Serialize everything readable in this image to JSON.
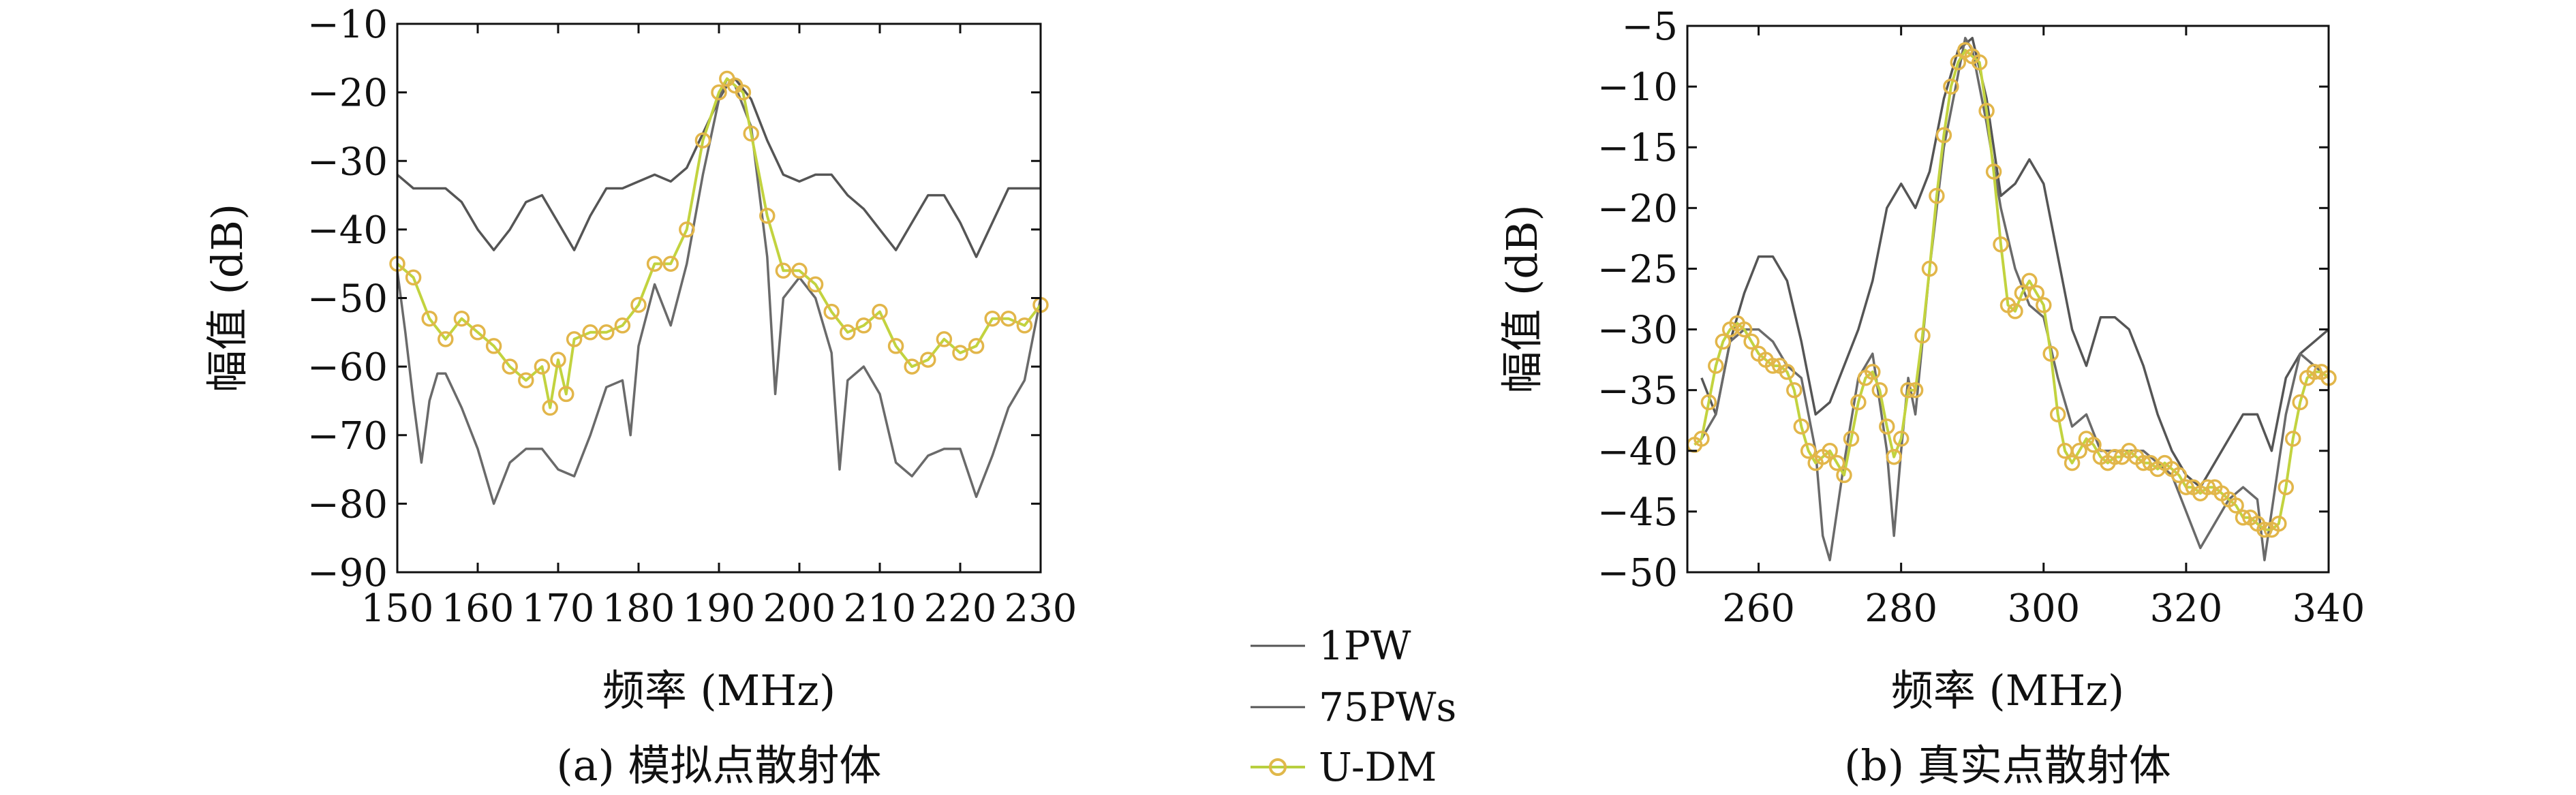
{
  "legend": {
    "entries": [
      {
        "name": "1PW",
        "color": "#555555"
      },
      {
        "name": "75PWs",
        "color": "#555555"
      },
      {
        "name": "U-DM",
        "color": "#b8cf3f",
        "marker": "#e0b84a"
      }
    ]
  },
  "colors": {
    "line_1pw": "#555555",
    "line_75pws": "#6a6a6a",
    "line_udm": "#c2d33f",
    "marker_udm": "#e2b64a",
    "accent_blue": "#2f8fcf",
    "accent_red": "#d5582a"
  },
  "chart_data": [
    {
      "type": "line",
      "caption": "(a) 模拟点散射体",
      "xlabel": "频率 (MHz)",
      "ylabel": "幅值 (dB)",
      "xlim": [
        150,
        230
      ],
      "ylim": [
        -90,
        -10
      ],
      "xticks": [
        150,
        160,
        170,
        180,
        190,
        200,
        210,
        220,
        230
      ],
      "yticks": [
        -10,
        -20,
        -30,
        -40,
        -50,
        -60,
        -70,
        -80,
        -90
      ],
      "grid": false,
      "series": [
        {
          "name": "1PW",
          "x": [
            150,
            152,
            154,
            156,
            158,
            160,
            162,
            164,
            166,
            168,
            170,
            172,
            174,
            176,
            178,
            180,
            182,
            184,
            186,
            188,
            190,
            191,
            192,
            194,
            196,
            198,
            200,
            202,
            204,
            206,
            208,
            210,
            212,
            214,
            216,
            218,
            220,
            222,
            224,
            226,
            228,
            230
          ],
          "y": [
            -32,
            -34,
            -34,
            -34,
            -36,
            -40,
            -43,
            -40,
            -36,
            -35,
            -39,
            -43,
            -38,
            -34,
            -34,
            -33,
            -32,
            -33,
            -31,
            -26,
            -21,
            -19,
            -18,
            -21,
            -27,
            -32,
            -33,
            -32,
            -32,
            -35,
            -37,
            -40,
            -43,
            -39,
            -35,
            -35,
            -39,
            -44,
            -39,
            -34,
            -34,
            -34
          ]
        },
        {
          "name": "75PWs",
          "x": [
            150,
            151,
            152,
            153,
            154,
            155,
            156,
            158,
            160,
            162,
            164,
            166,
            168,
            170,
            172,
            174,
            176,
            178,
            179,
            180,
            182,
            184,
            186,
            188,
            190,
            191,
            192,
            194,
            196,
            197,
            198,
            200,
            202,
            204,
            205,
            206,
            208,
            210,
            212,
            214,
            216,
            218,
            220,
            222,
            224,
            226,
            228,
            230
          ],
          "y": [
            -46,
            -55,
            -65,
            -74,
            -65,
            -61,
            -61,
            -66,
            -72,
            -80,
            -74,
            -72,
            -72,
            -75,
            -76,
            -70,
            -63,
            -62,
            -70,
            -57,
            -48,
            -54,
            -45,
            -32,
            -21,
            -18,
            -19,
            -25,
            -44,
            -64,
            -50,
            -47,
            -50,
            -58,
            -75,
            -62,
            -60,
            -64,
            -74,
            -76,
            -73,
            -72,
            -72,
            -79,
            -73,
            -66,
            -62,
            -50
          ]
        },
        {
          "name": "U-DM",
          "x": [
            150,
            152,
            154,
            156,
            158,
            160,
            162,
            164,
            166,
            168,
            169,
            170,
            171,
            172,
            174,
            176,
            178,
            180,
            182,
            184,
            186,
            188,
            190,
            191,
            192,
            193,
            194,
            196,
            198,
            200,
            202,
            204,
            206,
            208,
            210,
            212,
            214,
            216,
            218,
            220,
            222,
            224,
            226,
            228,
            230
          ],
          "y": [
            -45,
            -47,
            -53,
            -56,
            -53,
            -55,
            -57,
            -60,
            -62,
            -60,
            -66,
            -59,
            -64,
            -56,
            -55,
            -55,
            -54,
            -51,
            -45,
            -45,
            -40,
            -27,
            -20,
            -18,
            -19,
            -20,
            -26,
            -38,
            -46,
            -46,
            -48,
            -52,
            -55,
            -54,
            -52,
            -57,
            -60,
            -59,
            -56,
            -58,
            -57,
            -53,
            -53,
            -54,
            -51
          ]
        }
      ]
    },
    {
      "type": "line",
      "caption": "(b) 真实点散射体",
      "xlabel": "频率 (MHz)",
      "ylabel": "幅值 (dB)",
      "xlim": [
        250,
        340
      ],
      "ylim": [
        -50,
        -5
      ],
      "xticks": [
        260,
        280,
        300,
        320,
        340
      ],
      "yticks": [
        -5,
        -10,
        -15,
        -20,
        -25,
        -30,
        -35,
        -40,
        -45,
        -50
      ],
      "grid": false,
      "series": [
        {
          "name": "1PW",
          "x": [
            252,
            254,
            256,
            258,
            260,
            262,
            264,
            266,
            268,
            270,
            272,
            274,
            276,
            278,
            280,
            282,
            284,
            286,
            288,
            290,
            292,
            294,
            296,
            298,
            300,
            302,
            304,
            306,
            308,
            310,
            312,
            314,
            316,
            318,
            320,
            322,
            324,
            326,
            328,
            330,
            332,
            334,
            336,
            338,
            340
          ],
          "y": [
            -34,
            -37,
            -31,
            -27,
            -24,
            -24,
            -26,
            -31,
            -37,
            -36,
            -33,
            -30,
            -26,
            -20,
            -18,
            -20,
            -17,
            -11,
            -7,
            -6,
            -11,
            -19,
            -18,
            -16,
            -18,
            -24,
            -30,
            -33,
            -29,
            -29,
            -30,
            -33,
            -37,
            -40,
            -42,
            -43,
            -41,
            -39,
            -37,
            -37,
            -40,
            -34,
            -32,
            -31,
            -30
          ]
        },
        {
          "name": "75PWs",
          "x": [
            252,
            254,
            256,
            258,
            260,
            262,
            264,
            266,
            268,
            269,
            270,
            272,
            274,
            276,
            278,
            279,
            280,
            281,
            282,
            284,
            286,
            288,
            289,
            290,
            292,
            294,
            296,
            298,
            300,
            302,
            304,
            306,
            308,
            310,
            312,
            314,
            316,
            318,
            320,
            322,
            324,
            326,
            328,
            330,
            331,
            332,
            334,
            336,
            338,
            340
          ],
          "y": [
            -39,
            -37,
            -31,
            -30,
            -30,
            -31,
            -33,
            -34,
            -40,
            -47,
            -49,
            -41,
            -34,
            -32,
            -40,
            -47,
            -40,
            -34,
            -37,
            -25,
            -15,
            -9,
            -6,
            -7,
            -13,
            -20,
            -25,
            -28,
            -29,
            -34,
            -38,
            -37,
            -40,
            -40,
            -40,
            -40,
            -41,
            -42,
            -45,
            -48,
            -46,
            -44,
            -43,
            -44,
            -49,
            -45,
            -37,
            -32,
            -33,
            -34
          ]
        },
        {
          "name": "U-DM",
          "x": [
            251,
            252,
            253,
            254,
            255,
            256,
            257,
            258,
            259,
            260,
            261,
            262,
            263,
            264,
            265,
            266,
            267,
            268,
            269,
            270,
            271,
            272,
            273,
            274,
            275,
            276,
            277,
            278,
            279,
            280,
            281,
            282,
            283,
            284,
            285,
            286,
            287,
            288,
            289,
            290,
            291,
            292,
            293,
            294,
            295,
            296,
            297,
            298,
            299,
            300,
            301,
            302,
            303,
            304,
            305,
            306,
            307,
            308,
            309,
            310,
            311,
            312,
            313,
            314,
            315,
            316,
            317,
            318,
            319,
            320,
            321,
            322,
            323,
            324,
            325,
            326,
            327,
            328,
            329,
            330,
            331,
            332,
            333,
            334,
            335,
            336,
            337,
            338,
            339,
            340
          ],
          "y": [
            -39.5,
            -39,
            -36,
            -33,
            -31,
            -30,
            -29.5,
            -30,
            -31,
            -32,
            -32.5,
            -33,
            -33,
            -33.5,
            -35,
            -38,
            -40,
            -41,
            -40.5,
            -40,
            -41,
            -42,
            -39,
            -36,
            -34,
            -33.5,
            -35,
            -38,
            -40.5,
            -39,
            -35,
            -35,
            -30.5,
            -25,
            -19,
            -14,
            -10,
            -8,
            -7,
            -7.5,
            -8,
            -12,
            -17,
            -23,
            -28,
            -28.5,
            -27,
            -26,
            -27,
            -28,
            -32,
            -37,
            -40,
            -41,
            -40,
            -39,
            -39.5,
            -40.5,
            -41,
            -40.5,
            -40.5,
            -40,
            -40.5,
            -41,
            -41,
            -41.5,
            -41,
            -41.5,
            -42,
            -43,
            -43,
            -43.5,
            -43,
            -43,
            -43.5,
            -44,
            -44.5,
            -45.5,
            -45.5,
            -46,
            -46.5,
            -46.5,
            -46,
            -43,
            -39,
            -36,
            -34,
            -33.5,
            -33.5,
            -34
          ]
        }
      ]
    }
  ]
}
